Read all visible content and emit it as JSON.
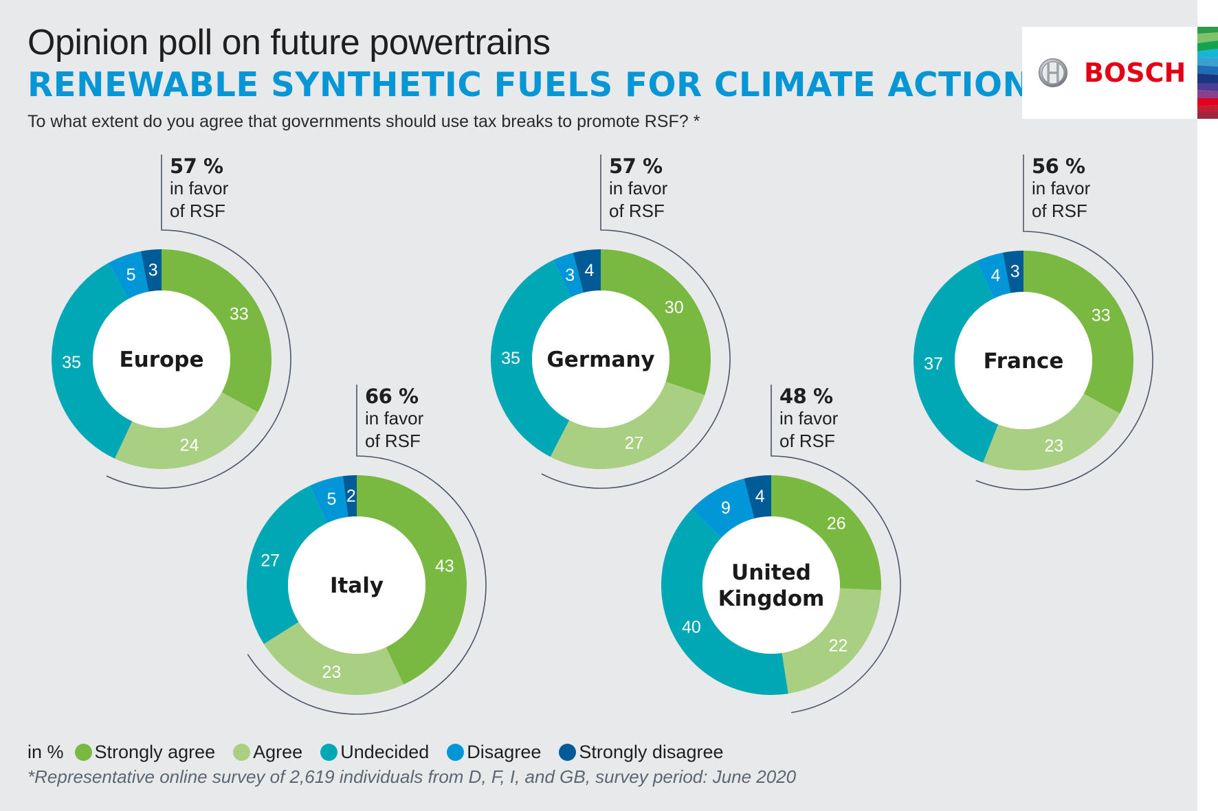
{
  "header": {
    "title": "Opinion poll on future powertrains",
    "headline": "RENEWABLE SYNTHETIC FUELS FOR CLIMATE ACTION",
    "question": "To what extent do you agree that governments should use tax breaks to promote RSF? *"
  },
  "logo": {
    "text": "BOSCH",
    "emblem_icon": "bosch-armature-icon",
    "color": "#e30016"
  },
  "colors": {
    "background": "#e8e9eb",
    "headline": "#0596d6",
    "strongly_agree": "#79b942",
    "agree": "#a9cf82",
    "undecided": "#00a8b5",
    "disagree": "#0096d7",
    "strongly_disagree": "#005b96",
    "bracket": "#4a5666"
  },
  "favor_suffix_line1": "in favor",
  "favor_suffix_line2": "of RSF",
  "chart_data": {
    "type": "pie",
    "variant": "donut",
    "title": "RENEWABLE SYNTHETIC FUELS FOR CLIMATE ACTION",
    "subtitle": "To what extent do you agree that governments should use tax breaks to promote RSF? *",
    "unit": "in %",
    "categories": [
      "Strongly agree",
      "Agree",
      "Undecided",
      "Disagree",
      "Strongly disagree"
    ],
    "series": [
      {
        "name": "Europe",
        "values": [
          33,
          24,
          35,
          5,
          3
        ],
        "in_favor": "57 %"
      },
      {
        "name": "Germany",
        "values": [
          30,
          27,
          35,
          3,
          4
        ],
        "in_favor": "57 %"
      },
      {
        "name": "France",
        "values": [
          33,
          23,
          37,
          4,
          3
        ],
        "in_favor": "56 %"
      },
      {
        "name": "Italy",
        "values": [
          43,
          23,
          27,
          5,
          2
        ],
        "in_favor": "66 %"
      },
      {
        "name": "United Kingdom",
        "label_lines": [
          "United",
          "Kingdom"
        ],
        "values": [
          26,
          22,
          40,
          9,
          4
        ],
        "in_favor": "48 %"
      }
    ],
    "legend_placement": "bottom-left"
  },
  "legend": {
    "unit_label": "in %",
    "items": [
      {
        "label": "Strongly agree",
        "key": "strongly_agree"
      },
      {
        "label": "Agree",
        "key": "agree"
      },
      {
        "label": "Undecided",
        "key": "undecided"
      },
      {
        "label": "Disagree",
        "key": "disagree"
      },
      {
        "label": "Strongly disagree",
        "key": "strongly_disagree"
      }
    ]
  },
  "footnote": "*Representative online survey of 2,619 individuals from D, F, I, and GB, survey period: June 2020"
}
